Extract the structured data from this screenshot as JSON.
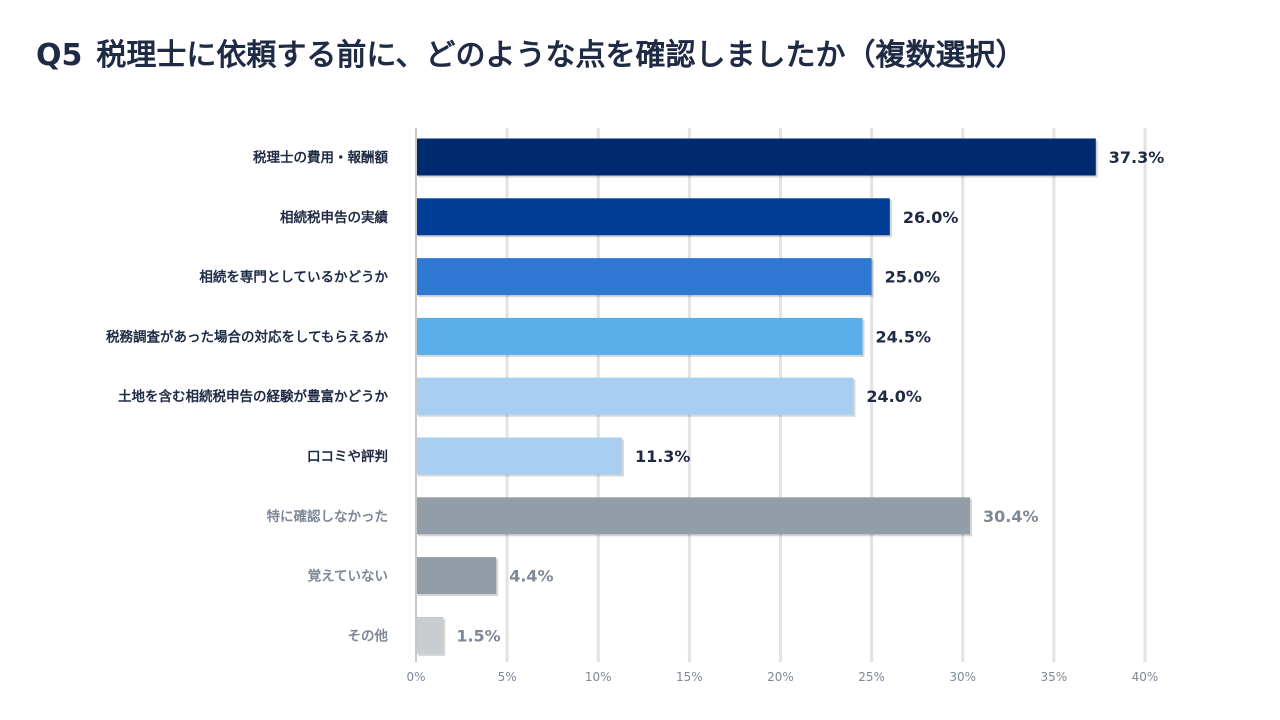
{
  "title": {
    "question": "Q5",
    "text": "税理士に依頼する前に、どのような点を確認しましたか（複数選択）"
  },
  "colors": {
    "title": "#1f2a44",
    "label_dark": "#1f2a44",
    "label_gray": "#7f8896",
    "grid": "#e3e3e3",
    "axis": "#c8c8c8"
  },
  "chart_data": {
    "type": "bar",
    "orientation": "horizontal",
    "categories": [
      "税理士の費用・報酬額",
      "相続税申告の実績",
      "相続を専門としているかどうか",
      "税務調査があった場合の対応をしてもらえるか",
      "土地を含む相続税申告の経験が豊富かどうか",
      "口コミや評判",
      "特に確認しなかった",
      "覚えていない",
      "その他"
    ],
    "values": [
      37.3,
      26.0,
      25.0,
      24.5,
      24.0,
      11.3,
      30.4,
      4.4,
      1.5
    ],
    "value_labels": [
      "37.3%",
      "26.0%",
      "25.0%",
      "24.5%",
      "24.0%",
      "11.3%",
      "30.4%",
      "4.4%",
      "1.5%"
    ],
    "bar_colors": [
      "#002a6e",
      "#003d96",
      "#2f78d4",
      "#5aafea",
      "#a8cff1",
      "#a8cff1",
      "#939da7",
      "#939da7",
      "#c8cdd2"
    ],
    "label_styles": [
      "dark",
      "dark",
      "dark",
      "dark",
      "dark",
      "dark",
      "gray",
      "gray",
      "gray"
    ],
    "xlim": [
      0,
      40
    ],
    "x_ticks": [
      0,
      5,
      10,
      15,
      20,
      25,
      30,
      35,
      40
    ],
    "x_tick_labels": [
      "0%",
      "5%",
      "10%",
      "15%",
      "20%",
      "25%",
      "30%",
      "35%",
      "40%"
    ],
    "grid": true,
    "legend": "none",
    "xlabel": "",
    "ylabel": ""
  }
}
